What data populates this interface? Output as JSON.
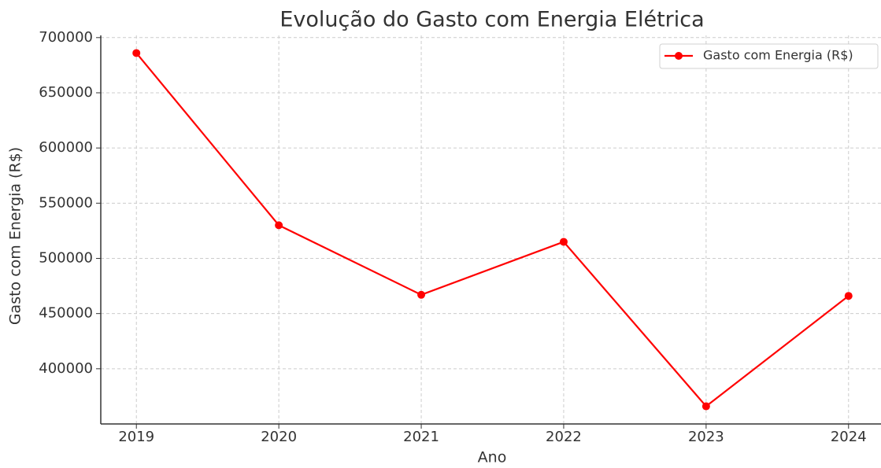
{
  "chart_data": {
    "type": "line",
    "title": "Evolução do Gasto com Energia Elétrica",
    "xlabel": "Ano",
    "ylabel": "Gasto com Energia (R$)",
    "x": [
      2019,
      2020,
      2021,
      2022,
      2023,
      2024
    ],
    "series": [
      {
        "name": "Gasto com Energia (R$)",
        "color": "#ff0000",
        "values": [
          686000,
          530000,
          467000,
          515000,
          366000,
          466000
        ]
      }
    ],
    "xlim": [
      2018.75,
      2024.25
    ],
    "xticks": [
      2019,
      2020,
      2021,
      2022,
      2023,
      2024
    ],
    "ylim": [
      350000,
      702000
    ],
    "yticks": [
      400000,
      450000,
      500000,
      550000,
      600000,
      650000,
      700000
    ],
    "grid": true,
    "legend": "upper right"
  }
}
